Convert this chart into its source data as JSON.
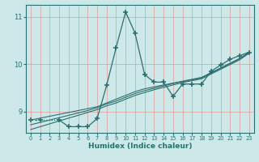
{
  "xlabel": "Humidex (Indice chaleur)",
  "bg_color": "#cce8e8",
  "grid_color": "#e89090",
  "line_color": "#2a7070",
  "x_data": [
    0,
    1,
    2,
    3,
    4,
    5,
    6,
    7,
    8,
    9,
    10,
    11,
    12,
    13,
    14,
    15,
    16,
    17,
    18,
    19,
    20,
    21,
    22,
    23
  ],
  "y_main": [
    8.82,
    8.82,
    null,
    8.82,
    8.68,
    8.68,
    8.68,
    8.85,
    9.55,
    10.35,
    11.1,
    10.65,
    9.78,
    9.62,
    9.62,
    9.32,
    9.58,
    9.58,
    9.58,
    9.85,
    9.98,
    10.1,
    10.18,
    10.25
  ],
  "y_trend1": [
    8.82,
    8.86,
    8.9,
    8.94,
    8.98,
    9.02,
    9.06,
    9.1,
    9.18,
    9.26,
    9.34,
    9.42,
    9.48,
    9.52,
    9.56,
    9.6,
    9.64,
    9.68,
    9.72,
    9.82,
    9.92,
    10.02,
    10.12,
    10.25
  ],
  "y_trend2": [
    8.72,
    8.77,
    8.82,
    8.87,
    8.92,
    8.97,
    9.02,
    9.08,
    9.16,
    9.22,
    9.3,
    9.38,
    9.44,
    9.49,
    9.54,
    9.59,
    9.63,
    9.67,
    9.71,
    9.81,
    9.91,
    10.01,
    10.11,
    10.24
  ],
  "y_trend3": [
    8.62,
    8.68,
    8.74,
    8.8,
    8.86,
    8.92,
    8.98,
    9.04,
    9.12,
    9.18,
    9.26,
    9.34,
    9.4,
    9.46,
    9.51,
    9.56,
    9.61,
    9.65,
    9.69,
    9.79,
    9.89,
    9.99,
    10.09,
    10.23
  ],
  "ylim": [
    8.55,
    11.25
  ],
  "xlim": [
    -0.5,
    23.5
  ],
  "yticks": [
    9,
    10,
    11
  ],
  "xticks": [
    0,
    1,
    2,
    3,
    4,
    5,
    6,
    7,
    8,
    9,
    10,
    11,
    12,
    13,
    14,
    15,
    16,
    17,
    18,
    19,
    20,
    21,
    22,
    23
  ]
}
